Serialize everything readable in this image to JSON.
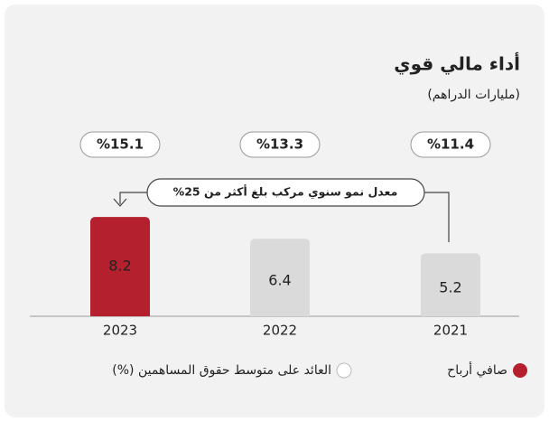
{
  "chart_data": {
    "type": "bar",
    "title": "أداء مالي قوي",
    "subtitle": "(مليارات الدراهم)",
    "annotation": "معدل نمو سنوي مركب بلغ أكثر من 25%",
    "categories": [
      "2021",
      "2022",
      "2023"
    ],
    "series": [
      {
        "name": "صافي أرباح",
        "color": "#b5202e",
        "colors": [
          "#dadada",
          "#dadada",
          "#b5202e"
        ],
        "values": [
          5.2,
          6.4,
          8.2
        ]
      },
      {
        "name": "العائد على متوسط حقوق المساهمين (%)",
        "color": "#ffffff",
        "values": [
          11.4,
          13.3,
          15.1
        ],
        "value_labels": [
          "%11.4",
          "%13.3",
          "%15.1"
        ]
      }
    ]
  }
}
